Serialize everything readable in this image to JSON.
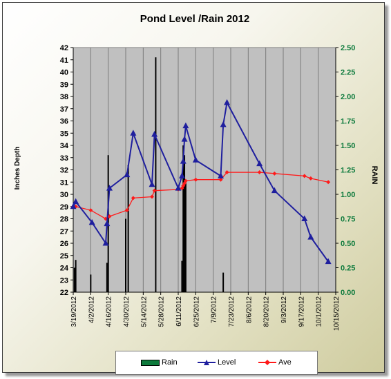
{
  "chart_data": {
    "type": "line",
    "title": "Pond Level /Rain 2012",
    "ylabel": "Inches Depth",
    "y2label": "RAIN",
    "ylim": [
      22,
      42
    ],
    "y2lim": [
      0,
      2.5
    ],
    "y_ticks": [
      22,
      23,
      24,
      25,
      26,
      27,
      28,
      29,
      30,
      31,
      32,
      33,
      34,
      35,
      36,
      37,
      38,
      39,
      40,
      41,
      42
    ],
    "y2_ticks": [
      "0.00",
      "0.25",
      "0.50",
      "0.75",
      "1.00",
      "1.25",
      "1.50",
      "1.75",
      "2.00",
      "2.25",
      "2.50"
    ],
    "x_ticks": [
      "3/19/2012",
      "4/2/2012",
      "4/16/2012",
      "4/30/2012",
      "5/14/2012",
      "5/28/2012",
      "6/11/2012",
      "6/25/2012",
      "7/9/2012",
      "7/23/2012",
      "8/6/2012",
      "8/20/2012",
      "9/3/2012",
      "9/17/2012",
      "10/1/2012",
      "10/15/2012"
    ],
    "xlim": [
      "2012-03-19",
      "2012-10-15"
    ],
    "grid": "vertical",
    "legend_position": "bottom",
    "colors": {
      "rain": "#0d7a3c",
      "level": "#1f1f9e",
      "ave": "#ff1a1a",
      "plot_bg": "#c0c0c0"
    },
    "series": [
      {
        "name": "Rain",
        "axis": "right",
        "type": "bar",
        "points": [
          {
            "x": "2012-03-20",
            "y": 0.25
          },
          {
            "x": "2012-03-21",
            "y": 0.33
          },
          {
            "x": "2012-04-02",
            "y": 0.18
          },
          {
            "x": "2012-04-15",
            "y": 0.3
          },
          {
            "x": "2012-04-16",
            "y": 1.4
          },
          {
            "x": "2012-04-30",
            "y": 0.75
          },
          {
            "x": "2012-05-02",
            "y": 1.3
          },
          {
            "x": "2012-05-24",
            "y": 2.4
          },
          {
            "x": "2012-06-14",
            "y": 0.32
          },
          {
            "x": "2012-06-15",
            "y": 1.5
          },
          {
            "x": "2012-06-16",
            "y": 1.4
          },
          {
            "x": "2012-06-17",
            "y": 1.12
          },
          {
            "x": "2012-07-17",
            "y": 0.2
          }
        ]
      },
      {
        "name": "Level",
        "axis": "left",
        "type": "line",
        "points": [
          {
            "x": "2012-03-19",
            "y": 29.0
          },
          {
            "x": "2012-03-21",
            "y": 29.4
          },
          {
            "x": "2012-04-03",
            "y": 27.7
          },
          {
            "x": "2012-04-14",
            "y": 26.0
          },
          {
            "x": "2012-04-15",
            "y": 27.6
          },
          {
            "x": "2012-04-17",
            "y": 30.5
          },
          {
            "x": "2012-05-01",
            "y": 31.6
          },
          {
            "x": "2012-05-06",
            "y": 35.0
          },
          {
            "x": "2012-05-21",
            "y": 30.8
          },
          {
            "x": "2012-05-23",
            "y": 34.9
          },
          {
            "x": "2012-06-11",
            "y": 30.5
          },
          {
            "x": "2012-06-14",
            "y": 31.5
          },
          {
            "x": "2012-06-15",
            "y": 32.7
          },
          {
            "x": "2012-06-16",
            "y": 34.5
          },
          {
            "x": "2012-06-17",
            "y": 35.6
          },
          {
            "x": "2012-06-25",
            "y": 32.8
          },
          {
            "x": "2012-07-15",
            "y": 31.5
          },
          {
            "x": "2012-07-17",
            "y": 35.7
          },
          {
            "x": "2012-07-20",
            "y": 37.5
          },
          {
            "x": "2012-08-15",
            "y": 32.5
          },
          {
            "x": "2012-08-27",
            "y": 30.3
          },
          {
            "x": "2012-09-20",
            "y": 28.0
          },
          {
            "x": "2012-09-25",
            "y": 26.5
          },
          {
            "x": "2012-10-09",
            "y": 24.5
          }
        ]
      },
      {
        "name": "Ave",
        "axis": "left",
        "type": "line",
        "points": [
          {
            "x": "2012-03-19",
            "y": 29.0
          },
          {
            "x": "2012-03-21",
            "y": 29.0
          },
          {
            "x": "2012-04-02",
            "y": 28.7
          },
          {
            "x": "2012-04-14",
            "y": 28.0
          },
          {
            "x": "2012-04-17",
            "y": 28.2
          },
          {
            "x": "2012-05-01",
            "y": 28.7
          },
          {
            "x": "2012-05-06",
            "y": 29.7
          },
          {
            "x": "2012-05-21",
            "y": 29.8
          },
          {
            "x": "2012-05-23",
            "y": 30.3
          },
          {
            "x": "2012-06-11",
            "y": 30.4
          },
          {
            "x": "2012-06-14",
            "y": 30.5
          },
          {
            "x": "2012-06-15",
            "y": 30.7
          },
          {
            "x": "2012-06-16",
            "y": 30.9
          },
          {
            "x": "2012-06-17",
            "y": 31.1
          },
          {
            "x": "2012-06-25",
            "y": 31.2
          },
          {
            "x": "2012-07-15",
            "y": 31.2
          },
          {
            "x": "2012-07-20",
            "y": 31.8
          },
          {
            "x": "2012-08-15",
            "y": 31.8
          },
          {
            "x": "2012-08-27",
            "y": 31.7
          },
          {
            "x": "2012-09-20",
            "y": 31.5
          },
          {
            "x": "2012-09-25",
            "y": 31.3
          },
          {
            "x": "2012-10-09",
            "y": 31.0
          }
        ]
      }
    ]
  },
  "legend": {
    "rain_label": "Rain",
    "level_label": "Level",
    "ave_label": "Ave"
  }
}
